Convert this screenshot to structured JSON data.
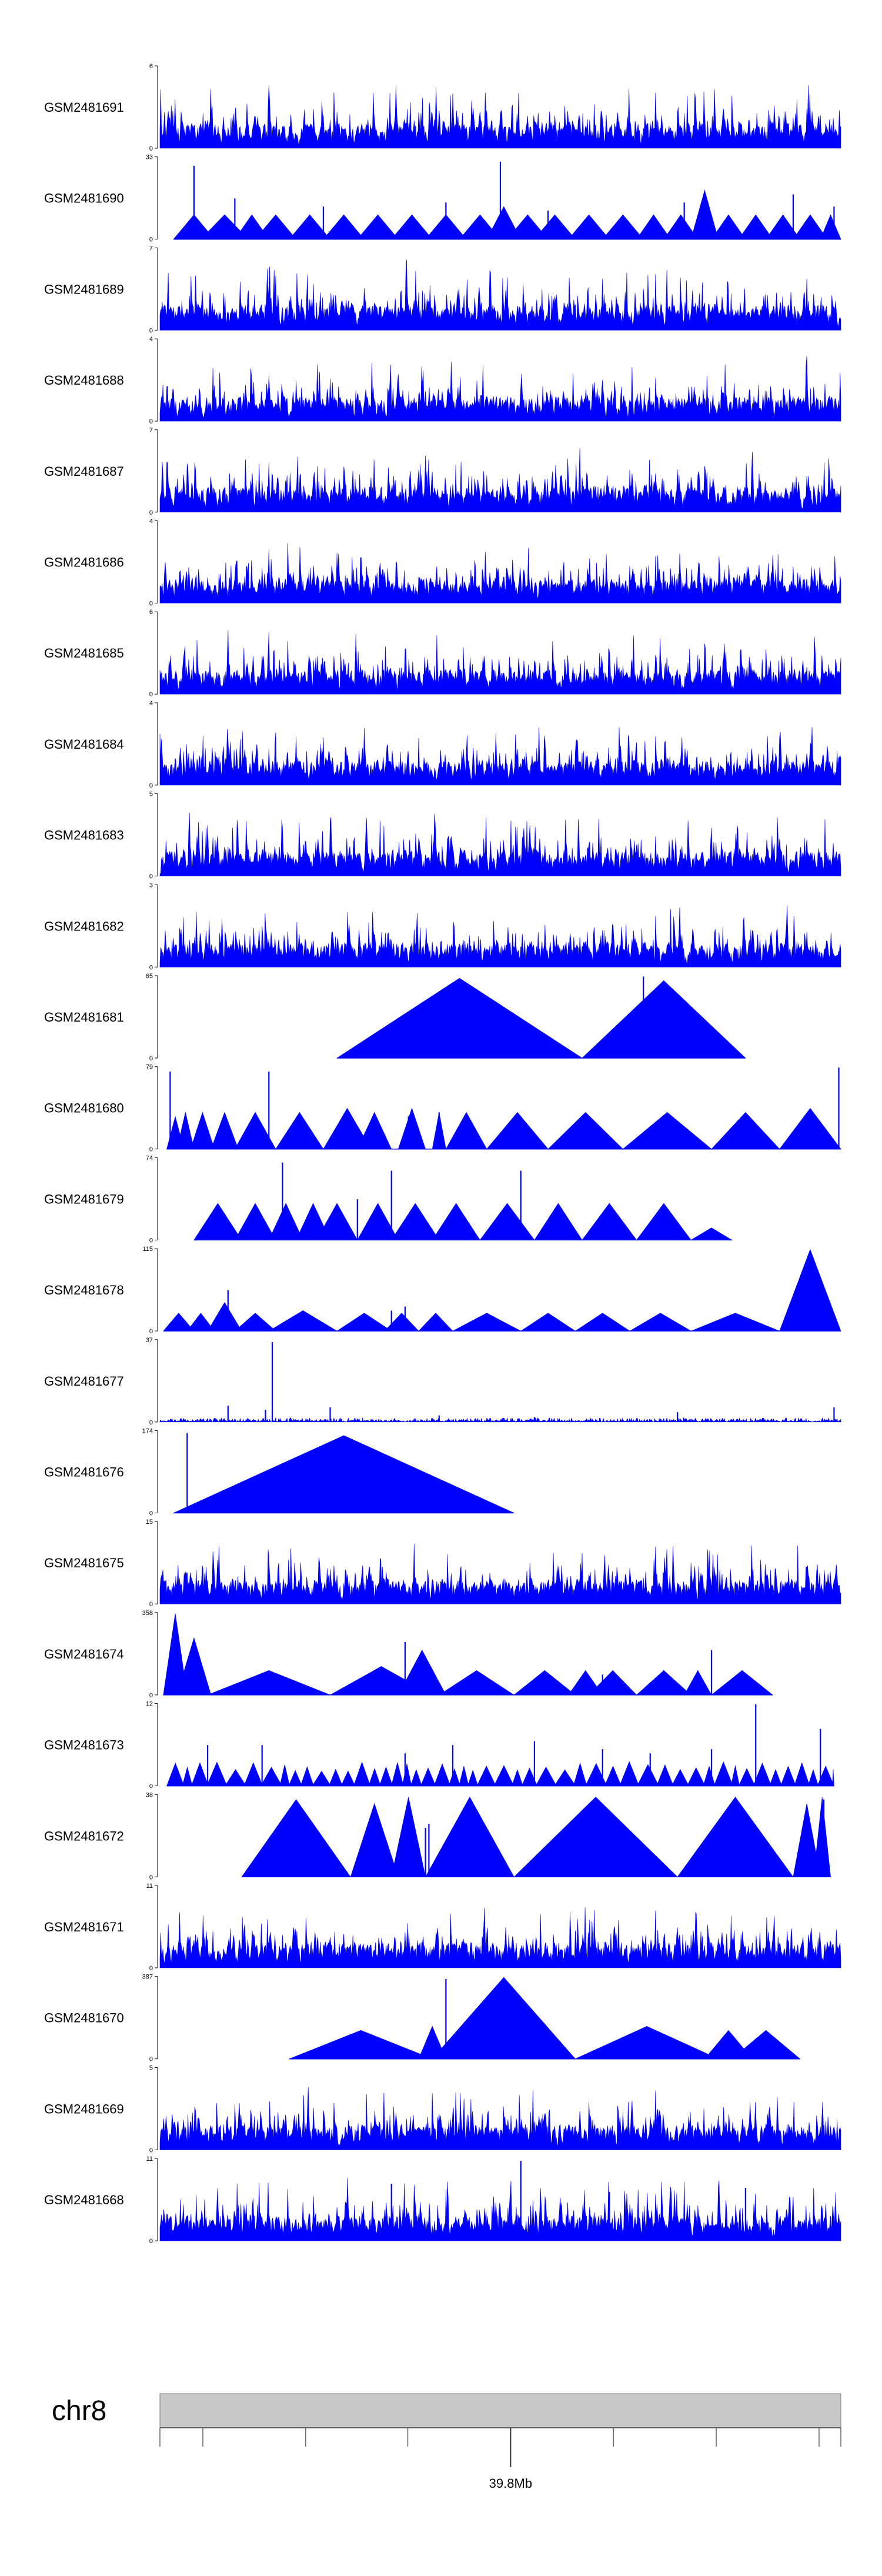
{
  "chart_data": {
    "type": "area",
    "title": "",
    "fill_color": "#0000ff",
    "axis_color": "#000000",
    "chromosome": {
      "label": "chr8",
      "band_color": "#c8c8c8",
      "tick_label": "39.8Mb"
    },
    "tracks": [
      {
        "name": "GSM2481691",
        "ymax": "6",
        "ymin": "0",
        "style": "dense",
        "seed": 1
      },
      {
        "name": "GSM2481690",
        "ymax": "33",
        "ymin": "0",
        "style": "tri",
        "segments": [
          [
            0.02,
            0.08,
            0.3
          ],
          [
            0.06,
            0.13,
            0.3
          ],
          [
            0.11,
            0.16,
            0.3
          ],
          [
            0.14,
            0.2,
            0.3
          ],
          [
            0.19,
            0.25,
            0.3
          ],
          [
            0.24,
            0.3,
            0.3
          ],
          [
            0.29,
            0.35,
            0.3
          ],
          [
            0.34,
            0.4,
            0.3
          ],
          [
            0.39,
            0.45,
            0.3
          ],
          [
            0.44,
            0.5,
            0.3
          ],
          [
            0.48,
            0.53,
            0.4
          ],
          [
            0.51,
            0.57,
            0.3
          ],
          [
            0.55,
            0.61,
            0.3
          ],
          [
            0.6,
            0.66,
            0.3
          ],
          [
            0.65,
            0.71,
            0.3
          ],
          [
            0.7,
            0.75,
            0.3
          ],
          [
            0.74,
            0.79,
            0.3
          ],
          [
            0.78,
            0.82,
            0.6
          ],
          [
            0.81,
            0.86,
            0.3
          ],
          [
            0.85,
            0.9,
            0.3
          ],
          [
            0.89,
            0.94,
            0.3
          ],
          [
            0.93,
            0.98,
            0.3
          ],
          [
            0.97,
            1.0,
            0.3
          ]
        ],
        "spikes": [
          [
            0.05,
            0.9
          ],
          [
            0.11,
            0.5
          ],
          [
            0.24,
            0.4
          ],
          [
            0.42,
            0.45
          ],
          [
            0.5,
            0.95
          ],
          [
            0.57,
            0.35
          ],
          [
            0.77,
            0.45
          ],
          [
            0.93,
            0.55
          ],
          [
            0.99,
            0.4
          ]
        ]
      },
      {
        "name": "GSM2481689",
        "ymax": "7",
        "ymin": "0",
        "style": "dense",
        "seed": 3
      },
      {
        "name": "GSM2481688",
        "ymax": "4",
        "ymin": "0",
        "style": "dense",
        "seed": 4
      },
      {
        "name": "GSM2481687",
        "ymax": "7",
        "ymin": "0",
        "style": "dense",
        "seed": 5
      },
      {
        "name": "GSM2481686",
        "ymax": "4",
        "ymin": "0",
        "style": "dense",
        "seed": 6
      },
      {
        "name": "GSM2481685",
        "ymax": "6",
        "ymin": "0",
        "style": "dense",
        "seed": 7
      },
      {
        "name": "GSM2481684",
        "ymax": "4",
        "ymin": "0",
        "style": "dense",
        "seed": 8
      },
      {
        "name": "GSM2481683",
        "ymax": "5",
        "ymin": "0",
        "style": "dense",
        "seed": 9
      },
      {
        "name": "GSM2481682",
        "ymax": "3",
        "ymin": "0",
        "style": "dense",
        "seed": 10
      },
      {
        "name": "GSM2481681",
        "ymax": "65",
        "ymin": "0",
        "style": "tri",
        "segments": [
          [
            0.26,
            0.62,
            0.98
          ],
          [
            0.62,
            0.86,
            0.95
          ]
        ],
        "spikes": [
          [
            0.71,
            1.0
          ]
        ]
      },
      {
        "name": "GSM2481680",
        "ymax": "79",
        "ymin": "0",
        "style": "tri",
        "segments": [
          [
            0.01,
            0.035,
            0.4
          ],
          [
            0.025,
            0.05,
            0.45
          ],
          [
            0.045,
            0.08,
            0.45
          ],
          [
            0.075,
            0.115,
            0.45
          ],
          [
            0.11,
            0.17,
            0.45
          ],
          [
            0.17,
            0.24,
            0.45
          ],
          [
            0.24,
            0.31,
            0.5
          ],
          [
            0.29,
            0.34,
            0.45
          ],
          [
            0.35,
            0.39,
            0.5
          ],
          [
            0.4,
            0.42,
            0.45
          ],
          [
            0.42,
            0.48,
            0.45
          ],
          [
            0.48,
            0.57,
            0.45
          ],
          [
            0.57,
            0.68,
            0.45
          ],
          [
            0.68,
            0.81,
            0.45
          ],
          [
            0.81,
            0.91,
            0.45
          ],
          [
            0.91,
            1.0,
            0.5
          ]
        ],
        "spikes": [
          [
            0.015,
            0.95
          ],
          [
            0.16,
            0.95
          ],
          [
            0.365,
            0.4
          ],
          [
            0.41,
            0.45
          ],
          [
            0.997,
            1.0
          ]
        ]
      },
      {
        "name": "GSM2481679",
        "ymax": "74",
        "ymin": "0",
        "style": "tri",
        "segments": [
          [
            0.05,
            0.12,
            0.45
          ],
          [
            0.11,
            0.17,
            0.45
          ],
          [
            0.16,
            0.21,
            0.45
          ],
          [
            0.2,
            0.25,
            0.45
          ],
          [
            0.23,
            0.29,
            0.45
          ],
          [
            0.29,
            0.35,
            0.45
          ],
          [
            0.34,
            0.41,
            0.45
          ],
          [
            0.4,
            0.47,
            0.45
          ],
          [
            0.47,
            0.55,
            0.45
          ],
          [
            0.55,
            0.62,
            0.45
          ],
          [
            0.62,
            0.7,
            0.45
          ],
          [
            0.7,
            0.78,
            0.45
          ],
          [
            0.78,
            0.84,
            0.15
          ]
        ],
        "spikes": [
          [
            0.18,
            0.95
          ],
          [
            0.34,
            0.85
          ],
          [
            0.53,
            0.85
          ],
          [
            0.29,
            0.5
          ]
        ]
      },
      {
        "name": "GSM2481678",
        "ymax": "115",
        "ymin": "0",
        "style": "tri",
        "segments": [
          [
            0.005,
            0.05,
            0.22
          ],
          [
            0.04,
            0.08,
            0.22
          ],
          [
            0.07,
            0.12,
            0.35
          ],
          [
            0.11,
            0.17,
            0.22
          ],
          [
            0.16,
            0.26,
            0.25
          ],
          [
            0.26,
            0.34,
            0.22
          ],
          [
            0.33,
            0.38,
            0.22
          ],
          [
            0.38,
            0.43,
            0.22
          ],
          [
            0.43,
            0.53,
            0.22
          ],
          [
            0.53,
            0.61,
            0.22
          ],
          [
            0.61,
            0.69,
            0.22
          ],
          [
            0.69,
            0.78,
            0.22
          ],
          [
            0.78,
            0.91,
            0.22
          ],
          [
            0.91,
            1.0,
            1.0
          ]
        ],
        "spikes": [
          [
            0.1,
            0.5
          ],
          [
            0.34,
            0.25
          ],
          [
            0.36,
            0.3
          ]
        ]
      },
      {
        "name": "GSM2481677",
        "ymax": "37",
        "ymin": "0",
        "style": "sparse",
        "seed": 17,
        "spikes": [
          [
            0.165,
            0.98
          ],
          [
            0.1,
            0.2
          ],
          [
            0.155,
            0.15
          ],
          [
            0.25,
            0.18
          ],
          [
            0.41,
            0.08
          ],
          [
            0.55,
            0.06
          ],
          [
            0.76,
            0.12
          ],
          [
            0.99,
            0.18
          ]
        ]
      },
      {
        "name": "GSM2481676",
        "ymax": "174",
        "ymin": "0",
        "style": "tri",
        "segments": [
          [
            0.02,
            0.52,
            0.95
          ]
        ],
        "spikes": [
          [
            0.04,
            0.98
          ]
        ]
      },
      {
        "name": "GSM2481675",
        "ymax": "15",
        "ymin": "0",
        "style": "dense",
        "seed": 19
      },
      {
        "name": "GSM2481674",
        "ymax": "358",
        "ymin": "0",
        "style": "tri",
        "segments": [
          [
            0.005,
            0.04,
            1.0
          ],
          [
            0.025,
            0.075,
            0.7
          ],
          [
            0.07,
            0.25,
            0.3
          ],
          [
            0.25,
            0.4,
            0.35
          ],
          [
            0.35,
            0.42,
            0.55
          ],
          [
            0.41,
            0.52,
            0.3
          ],
          [
            0.52,
            0.61,
            0.3
          ],
          [
            0.6,
            0.65,
            0.3
          ],
          [
            0.63,
            0.7,
            0.3
          ],
          [
            0.7,
            0.78,
            0.3
          ],
          [
            0.77,
            0.81,
            0.3
          ],
          [
            0.81,
            0.9,
            0.3
          ]
        ],
        "spikes": [
          [
            0.36,
            0.65
          ],
          [
            0.81,
            0.55
          ],
          [
            0.65,
            0.25
          ]
        ]
      },
      {
        "name": "GSM2481673",
        "ymax": "12",
        "ymin": "0",
        "style": "tri",
        "segments": "auto-fine",
        "spikes": [
          [
            0.875,
            1.0
          ],
          [
            0.97,
            0.7
          ],
          [
            0.55,
            0.55
          ],
          [
            0.43,
            0.5
          ],
          [
            0.36,
            0.4
          ],
          [
            0.07,
            0.5
          ],
          [
            0.15,
            0.5
          ],
          [
            0.65,
            0.45
          ],
          [
            0.72,
            0.4
          ],
          [
            0.81,
            0.45
          ]
        ]
      },
      {
        "name": "GSM2481672",
        "ymax": "38",
        "ymin": "0",
        "style": "tri",
        "segments": [
          [
            0.12,
            0.28,
            0.95
          ],
          [
            0.28,
            0.35,
            0.9
          ],
          [
            0.34,
            0.39,
            0.98
          ],
          [
            0.39,
            0.52,
            0.98
          ],
          [
            0.52,
            0.76,
            0.98
          ],
          [
            0.76,
            0.93,
            0.98
          ],
          [
            0.93,
            0.97,
            0.9
          ],
          [
            0.96,
            0.985,
            0.98
          ]
        ],
        "spikes": [
          [
            0.39,
            0.6
          ],
          [
            0.395,
            0.65
          ],
          [
            0.975,
            0.95
          ]
        ]
      },
      {
        "name": "GSM2481671",
        "ymax": "11",
        "ymin": "0",
        "style": "dense",
        "seed": 23
      },
      {
        "name": "GSM2481670",
        "ymax": "387",
        "ymin": "0",
        "style": "tri",
        "segments": [
          [
            0.19,
            0.4,
            0.35
          ],
          [
            0.38,
            0.42,
            0.4
          ],
          [
            0.4,
            0.61,
            1.0
          ],
          [
            0.61,
            0.82,
            0.4
          ],
          [
            0.8,
            0.87,
            0.35
          ],
          [
            0.84,
            0.94,
            0.35
          ]
        ],
        "spikes": [
          [
            0.42,
            0.98
          ]
        ]
      },
      {
        "name": "GSM2481669",
        "ymax": "5",
        "ymin": "0",
        "style": "dense",
        "seed": 25
      },
      {
        "name": "GSM2481668",
        "ymax": "11",
        "ymin": "0",
        "style": "dense",
        "seed": 26,
        "spikes": [
          [
            0.53,
            0.98
          ],
          [
            0.34,
            0.7
          ],
          [
            0.86,
            0.65
          ],
          [
            0.66,
            0.6
          ]
        ]
      }
    ]
  }
}
